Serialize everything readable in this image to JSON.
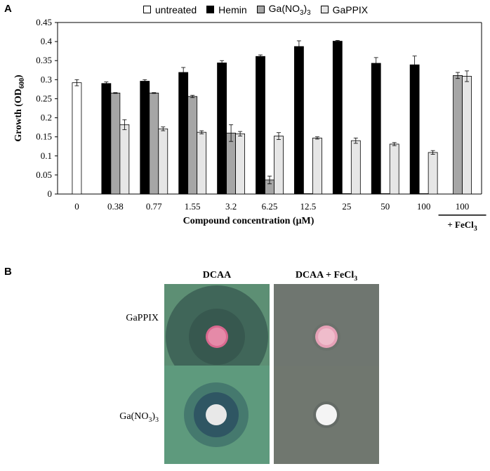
{
  "panels": {
    "a_label": "A",
    "b_label": "B"
  },
  "legend": [
    {
      "label": "untreated",
      "color": "#ffffff"
    },
    {
      "label": "Hemin",
      "color": "#000000"
    },
    {
      "label": "Ga(NO3)3",
      "color": "#a6a6a6"
    },
    {
      "label": "GaPPIX",
      "color": "#e6e6e6"
    }
  ],
  "chart_data": {
    "type": "bar",
    "categories": [
      "0",
      "0.38",
      "0.77",
      "1.55",
      "3.2",
      "6.25",
      "12.5",
      "25",
      "50",
      "100",
      "100"
    ],
    "extra_label": "+ FeCl3",
    "xlabel": "Compound concentration (μM)",
    "ylabel": "Growth (OD600)",
    "ylim": [
      0,
      0.45
    ],
    "yticks": [
      0,
      0.05,
      0.1,
      0.15,
      0.2,
      0.25,
      0.3,
      0.35,
      0.4,
      0.45
    ],
    "series": [
      {
        "name": "untreated",
        "color": "#ffffff",
        "values": [
          0.292,
          null,
          null,
          null,
          null,
          null,
          null,
          null,
          null,
          null,
          null
        ],
        "errors": [
          0.008,
          null,
          null,
          null,
          null,
          null,
          null,
          null,
          null,
          null,
          null
        ]
      },
      {
        "name": "Hemin",
        "color": "#000000",
        "values": [
          null,
          0.29,
          0.296,
          0.319,
          0.344,
          0.361,
          0.387,
          0.401,
          0.343,
          0.339,
          null
        ],
        "errors": [
          null,
          0.004,
          0.004,
          0.013,
          0.006,
          0.004,
          0.015,
          0.002,
          0.015,
          0.023,
          null
        ]
      },
      {
        "name": "Ga(NO3)3",
        "color": "#a6a6a6",
        "values": [
          null,
          0.265,
          0.265,
          0.256,
          0.16,
          0.037,
          0.001,
          0.001,
          0.001,
          0.001,
          0.311
        ],
        "errors": [
          null,
          0.001,
          0.001,
          0.003,
          0.022,
          0.01,
          0.0,
          0.0,
          0.0,
          0.0,
          0.008
        ]
      },
      {
        "name": "GaPPIX",
        "color": "#e6e6e6",
        "values": [
          null,
          0.182,
          0.171,
          0.162,
          0.158,
          0.152,
          0.147,
          0.14,
          0.131,
          0.109,
          0.309
        ],
        "errors": [
          null,
          0.013,
          0.005,
          0.004,
          0.006,
          0.009,
          0.003,
          0.007,
          0.004,
          0.005,
          0.014
        ]
      }
    ]
  },
  "panel_b": {
    "col_titles": [
      "DCAA",
      "DCAA + FeCl3"
    ],
    "row_labels": [
      "GaPPIX",
      "Ga(NO3)3"
    ],
    "plates": [
      {
        "row": "GaPPIX",
        "col": "DCAA",
        "background": "#5d8f74",
        "zone_color": "#3b5f55",
        "disk_color": "#d9688f",
        "zone": "large"
      },
      {
        "row": "GaPPIX",
        "col": "DCAA + FeCl3",
        "background": "#6f7670",
        "zone_color": "#6f7670",
        "disk_color": "#e6a1b7",
        "zone": "none"
      },
      {
        "row": "Ga(NO3)3",
        "col": "DCAA",
        "background": "#5e9a7d",
        "zone_color": "#2f5663",
        "disk_color": "#e8e8e8",
        "zone": "medium"
      },
      {
        "row": "Ga(NO3)3",
        "col": "DCAA + FeCl3",
        "background": "#70776f",
        "zone_color": "#70776f",
        "disk_color": "#f4f4f4",
        "zone": "none"
      }
    ]
  }
}
